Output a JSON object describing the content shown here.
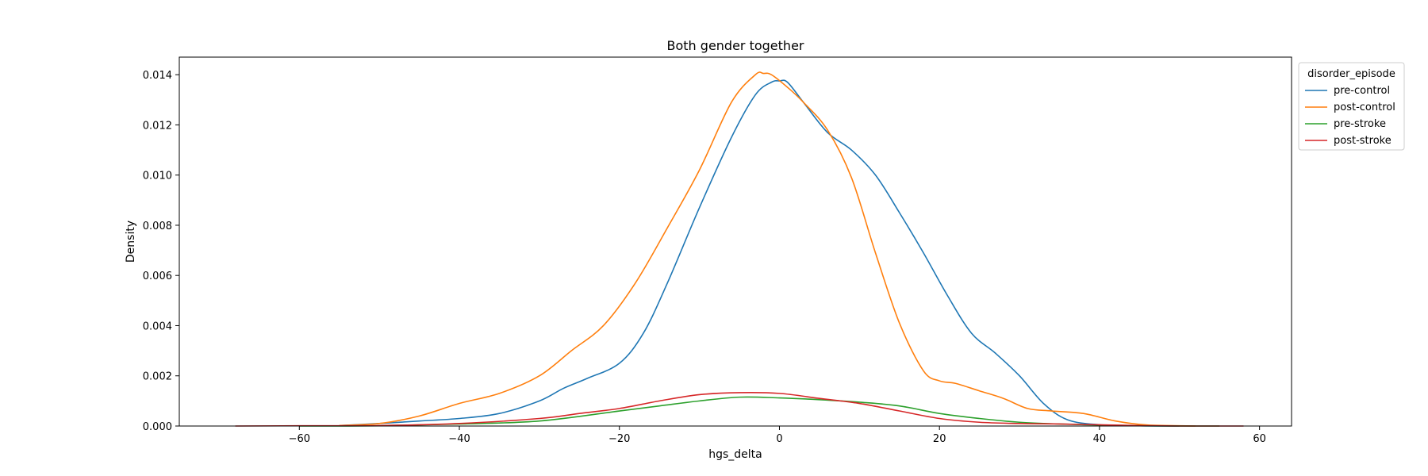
{
  "chart_data": {
    "type": "line",
    "title": "Both gender together",
    "xlabel": "hgs_delta",
    "ylabel": "Density",
    "xlim": [
      -75,
      64
    ],
    "ylim": [
      0,
      0.0147
    ],
    "xticks": [
      -60,
      -40,
      -20,
      0,
      20,
      40,
      60
    ],
    "xtick_labels": [
      "−60",
      "−40",
      "−20",
      "0",
      "20",
      "40",
      "60"
    ],
    "yticks": [
      0,
      0.002,
      0.004,
      0.006,
      0.008,
      0.01,
      0.012,
      0.014
    ],
    "ytick_labels": [
      "0.000",
      "0.002",
      "0.004",
      "0.006",
      "0.008",
      "0.010",
      "0.012",
      "0.014"
    ],
    "grid": false,
    "legend": {
      "title": "disorder_episode",
      "placement": "outside-upper-right"
    },
    "series": [
      {
        "name": "pre-control",
        "color": "#1f77b4",
        "x": [
          -55,
          -50,
          -45,
          -40,
          -35,
          -30,
          -27,
          -24,
          -20,
          -17,
          -14,
          -10,
          -6,
          -3,
          -1,
          0,
          1,
          3,
          6,
          9,
          12,
          15,
          18,
          21,
          24,
          27,
          30,
          33,
          36,
          40,
          45,
          50
        ],
        "y": [
          2e-05,
          0.0001,
          0.0002,
          0.0003,
          0.0005,
          0.001,
          0.0015,
          0.0019,
          0.0025,
          0.0037,
          0.0057,
          0.0087,
          0.0115,
          0.0132,
          0.0137,
          0.01375,
          0.0137,
          0.0129,
          0.0117,
          0.011,
          0.01,
          0.0085,
          0.0069,
          0.0052,
          0.0037,
          0.0029,
          0.002,
          0.0009,
          0.00025,
          5e-05,
          1e-05,
          0.0
        ]
      },
      {
        "name": "post-control",
        "color": "#ff7f0e",
        "x": [
          -55,
          -50,
          -45,
          -40,
          -35,
          -30,
          -26,
          -22,
          -18,
          -14,
          -10,
          -6,
          -3,
          -2,
          -1,
          1,
          3,
          6,
          9,
          12,
          15,
          18,
          20,
          22,
          25,
          28,
          31,
          34,
          38,
          42,
          46,
          52
        ],
        "y": [
          2e-05,
          0.0001,
          0.0004,
          0.0009,
          0.0013,
          0.002,
          0.003,
          0.004,
          0.0057,
          0.0079,
          0.0102,
          0.0129,
          0.014,
          0.01405,
          0.014,
          0.0135,
          0.0129,
          0.0118,
          0.0099,
          0.0069,
          0.0041,
          0.0022,
          0.0018,
          0.0017,
          0.0014,
          0.0011,
          0.0007,
          0.0006,
          0.0005,
          0.0002,
          4e-05,
          0.0
        ]
      },
      {
        "name": "pre-stroke",
        "color": "#2ca02c",
        "x": [
          -60,
          -50,
          -40,
          -30,
          -20,
          -15,
          -10,
          -5,
          0,
          5,
          10,
          15,
          20,
          25,
          30,
          35,
          40,
          45,
          50,
          55
        ],
        "y": [
          0.0,
          1e-05,
          8e-05,
          0.0002,
          0.0006,
          0.0008,
          0.001,
          0.00115,
          0.00112,
          0.00105,
          0.00095,
          0.0008,
          0.0005,
          0.0003,
          0.00015,
          8e-05,
          4e-05,
          1e-05,
          0.0,
          0.0
        ]
      },
      {
        "name": "post-stroke",
        "color": "#d62728",
        "x": [
          -68,
          -60,
          -50,
          -40,
          -30,
          -25,
          -20,
          -15,
          -10,
          -5,
          0,
          5,
          10,
          15,
          20,
          25,
          30,
          35,
          40,
          45,
          50,
          58
        ],
        "y": [
          0.0,
          1e-05,
          2e-05,
          0.0001,
          0.0003,
          0.0005,
          0.0007,
          0.001,
          0.00125,
          0.00133,
          0.0013,
          0.0011,
          0.0009,
          0.0006,
          0.0003,
          0.00015,
          0.0001,
          8e-05,
          5e-05,
          2e-05,
          0.0,
          0.0
        ]
      }
    ]
  }
}
